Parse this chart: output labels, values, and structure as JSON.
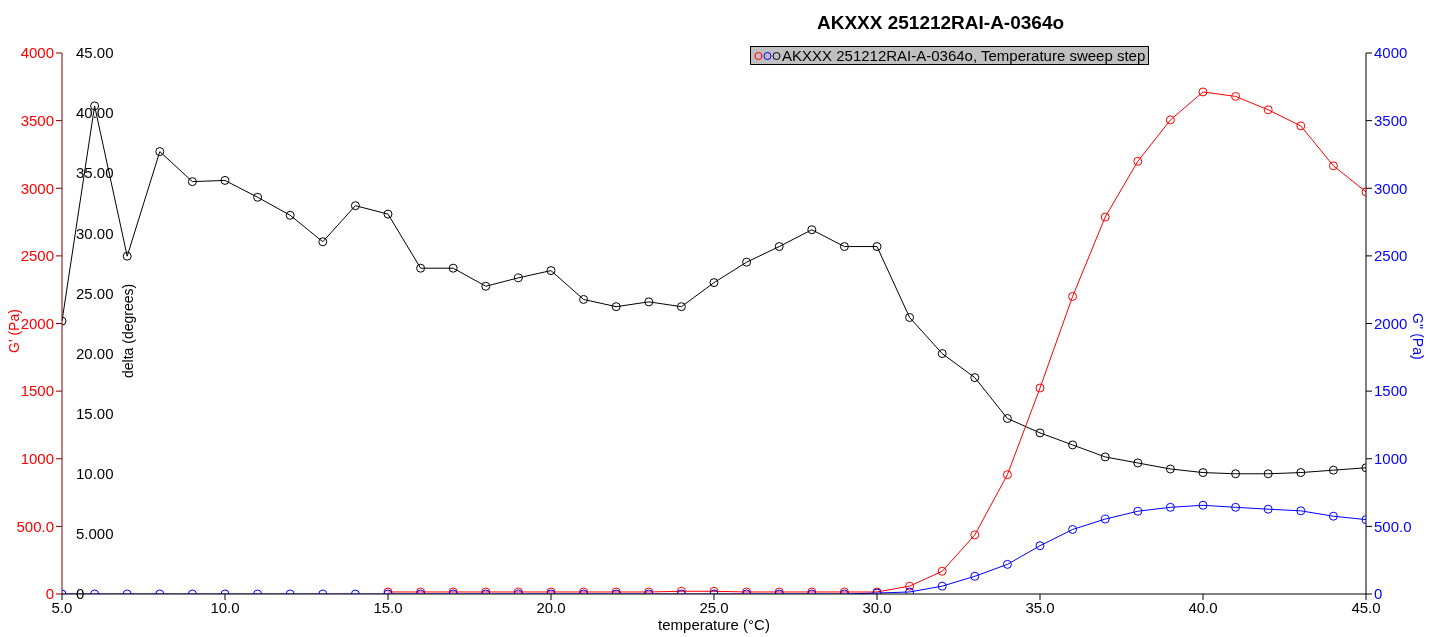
{
  "chart_data": {
    "type": "line",
    "title": "AKXXX 251212RAI-A-0364o",
    "legend_title": "AKXXX 251212RAI-A-0364o, Temperature sweep step",
    "xlabel": "temperature (°C)",
    "ylabel": "G' (Pa)",
    "y2label": "G'' (Pa)",
    "y3label": "delta (degrees)",
    "marker": "circle",
    "grid": false,
    "x": [
      5,
      6,
      7,
      8,
      9,
      10,
      11,
      12,
      13,
      14,
      15,
      16,
      17,
      18,
      19,
      20,
      21,
      22,
      23,
      24,
      25,
      26,
      27,
      28,
      29,
      30,
      31,
      32,
      33,
      34,
      35,
      36,
      37,
      38,
      39,
      40,
      41,
      42,
      43,
      44,
      45
    ],
    "xlim": [
      5,
      45
    ],
    "xticks": [
      {
        "value": 5,
        "label": "5.0"
      },
      {
        "value": 10,
        "label": "10.0"
      },
      {
        "value": 15,
        "label": "15.0"
      },
      {
        "value": 20,
        "label": "20.0"
      },
      {
        "value": 25,
        "label": "25.0"
      },
      {
        "value": 30,
        "label": "30.0"
      },
      {
        "value": 35,
        "label": "35.0"
      },
      {
        "value": 40,
        "label": "40.0"
      },
      {
        "value": 45,
        "label": "45.0"
      }
    ],
    "ylim": [
      0,
      4000
    ],
    "yticks": [
      0,
      {
        "value": 500,
        "label": "500.0"
      },
      1000,
      1500,
      2000,
      2500,
      3000,
      3500,
      4000
    ],
    "y2lim": [
      0,
      4000
    ],
    "y2ticks": [
      0,
      {
        "value": 500,
        "label": "500.0"
      },
      1000,
      1500,
      2000,
      2500,
      3000,
      3500,
      4000
    ],
    "y3lim": [
      0,
      45
    ],
    "y3ticks": [
      0,
      {
        "value": 5,
        "label": "5.000"
      },
      {
        "value": 10,
        "label": "10.00"
      },
      {
        "value": 15,
        "label": "15.00"
      },
      {
        "value": 20,
        "label": "20.00"
      },
      {
        "value": 25,
        "label": "25.00"
      },
      {
        "value": 30,
        "label": "30.00"
      },
      {
        "value": 35,
        "label": "35.00"
      },
      {
        "value": 40,
        "label": "40.00"
      },
      {
        "value": 45,
        "label": "45.00"
      }
    ],
    "series": [
      {
        "color": "#ff0000",
        "axis": "y",
        "values": [
          null,
          null,
          null,
          null,
          null,
          null,
          null,
          null,
          null,
          null,
          15,
          15,
          15,
          15,
          15,
          15,
          15,
          15,
          15,
          20,
          20,
          15,
          15,
          15,
          15,
          15,
          58,
          168,
          437,
          882,
          1523,
          2200,
          2787,
          3199,
          3505,
          3712,
          3679,
          3580,
          3461,
          3166,
          2973
        ]
      },
      {
        "color": "#0000ff",
        "axis": "y2",
        "values": [
          0,
          0,
          0,
          0,
          0,
          0,
          0,
          0,
          0,
          0,
          0,
          0,
          0,
          0,
          0,
          0,
          0,
          0,
          0,
          0,
          0,
          0,
          0,
          0,
          0,
          7,
          15,
          58,
          131,
          219,
          357,
          477,
          554,
          612,
          641,
          656,
          641,
          627,
          615,
          575,
          550
        ]
      },
      {
        "color": "#000000",
        "axis": "y3",
        "values": [
          22.7,
          40.6,
          28.1,
          36.8,
          34.3,
          34.4,
          33.0,
          31.5,
          29.3,
          32.3,
          31.6,
          27.1,
          27.1,
          25.6,
          26.3,
          26.9,
          24.5,
          23.9,
          24.3,
          23.9,
          25.9,
          27.6,
          28.9,
          30.3,
          28.9,
          28.9,
          23.0,
          20.0,
          18.0,
          14.6,
          13.4,
          12.4,
          11.4,
          10.9,
          10.4,
          10.1,
          10.0,
          10.0,
          10.1,
          10.3,
          10.5
        ]
      }
    ]
  }
}
